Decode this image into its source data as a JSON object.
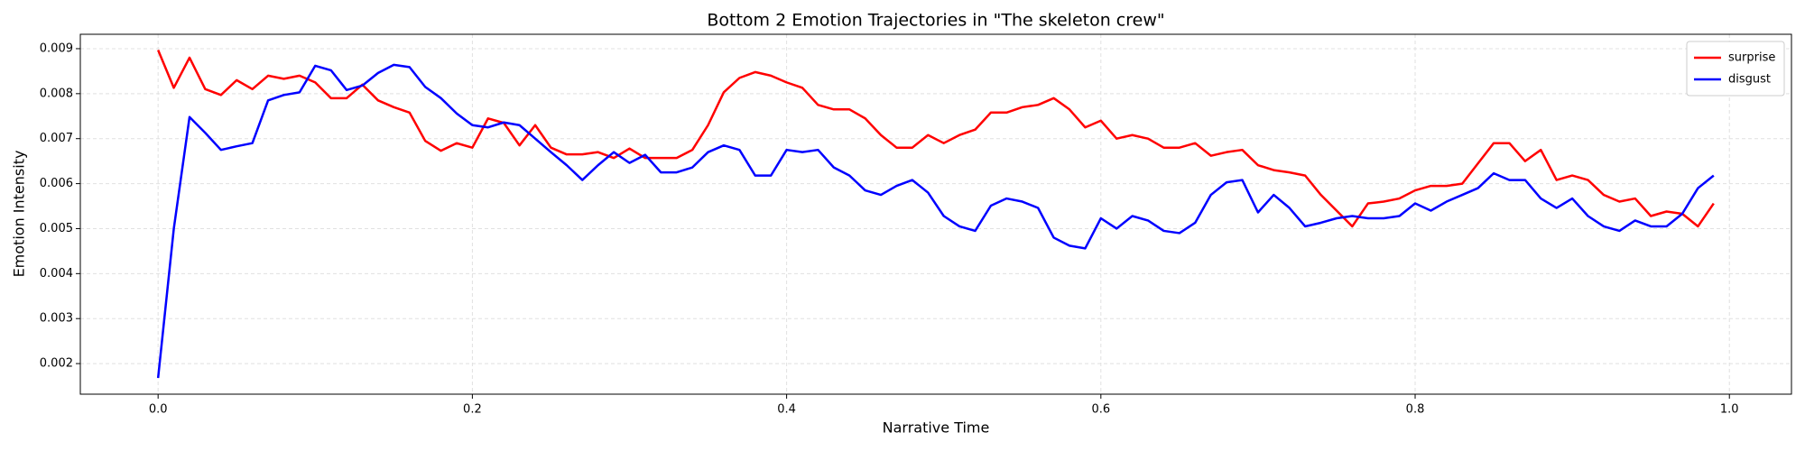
{
  "chart_data": {
    "type": "line",
    "title": "Bottom 2 Emotion Trajectories in \"The skeleton crew\"",
    "xlabel": "Narrative Time",
    "ylabel": "Emotion Intensity",
    "x": [
      0,
      0.01,
      0.02,
      0.03,
      0.04,
      0.05,
      0.06,
      0.07,
      0.08,
      0.09,
      0.1,
      0.11,
      0.12,
      0.13,
      0.14,
      0.15,
      0.16,
      0.17,
      0.18,
      0.19,
      0.2,
      0.21,
      0.22,
      0.23,
      0.24,
      0.25,
      0.26,
      0.27,
      0.28,
      0.29,
      0.3,
      0.31,
      0.32,
      0.33,
      0.34,
      0.35,
      0.36,
      0.37,
      0.38,
      0.39,
      0.4,
      0.41,
      0.42,
      0.43,
      0.44,
      0.45,
      0.46,
      0.47,
      0.48,
      0.49,
      0.5,
      0.51,
      0.52,
      0.53,
      0.54,
      0.55,
      0.56,
      0.57,
      0.58,
      0.59,
      0.6,
      0.61,
      0.62,
      0.63,
      0.64,
      0.65,
      0.66,
      0.67,
      0.68,
      0.69,
      0.7,
      0.71,
      0.72,
      0.73,
      0.74,
      0.75,
      0.76,
      0.77,
      0.78,
      0.79,
      0.8,
      0.81,
      0.82,
      0.83,
      0.84,
      0.85,
      0.86,
      0.87,
      0.88,
      0.89,
      0.9,
      0.91,
      0.92,
      0.93,
      0.94,
      0.95,
      0.96,
      0.97,
      0.98,
      0.99
    ],
    "series": [
      {
        "name": "surprise",
        "color": "#ff0000",
        "values": [
          0.00897,
          0.00813,
          0.0088,
          0.0081,
          0.00797,
          0.0083,
          0.0081,
          0.0084,
          0.00833,
          0.0084,
          0.00825,
          0.0079,
          0.0079,
          0.0082,
          0.00785,
          0.0077,
          0.00758,
          0.00695,
          0.00673,
          0.0069,
          0.0068,
          0.00745,
          0.00735,
          0.00685,
          0.0073,
          0.0068,
          0.00665,
          0.00665,
          0.0067,
          0.00657,
          0.00678,
          0.00657,
          0.00657,
          0.00657,
          0.00675,
          0.0073,
          0.00803,
          0.00835,
          0.00848,
          0.0084,
          0.00825,
          0.00813,
          0.00775,
          0.00765,
          0.00765,
          0.00745,
          0.00708,
          0.0068,
          0.0068,
          0.00708,
          0.0069,
          0.00708,
          0.0072,
          0.00758,
          0.00758,
          0.0077,
          0.00775,
          0.0079,
          0.00765,
          0.00725,
          0.0074,
          0.007,
          0.00708,
          0.007,
          0.0068,
          0.0068,
          0.0069,
          0.00662,
          0.0067,
          0.00675,
          0.00641,
          0.0063,
          0.00625,
          0.00618,
          0.00575,
          0.0054,
          0.00505,
          0.00556,
          0.0056,
          0.00567,
          0.00585,
          0.00595,
          0.00595,
          0.006,
          0.00645,
          0.0069,
          0.0069,
          0.0065,
          0.00675,
          0.00608,
          0.00618,
          0.00608,
          0.00575,
          0.0056,
          0.00567,
          0.00528,
          0.00538,
          0.00533,
          0.00505,
          0.00556
        ]
      },
      {
        "name": "disgust",
        "color": "#0000ff",
        "values": [
          0.00168,
          0.005,
          0.00748,
          0.00713,
          0.00675,
          0.00683,
          0.0069,
          0.00785,
          0.00797,
          0.00803,
          0.00862,
          0.00852,
          0.00808,
          0.00818,
          0.00846,
          0.00864,
          0.00859,
          0.00815,
          0.0079,
          0.00756,
          0.0073,
          0.00725,
          0.00736,
          0.0073,
          0.007,
          0.0067,
          0.00641,
          0.00608,
          0.00641,
          0.0067,
          0.00646,
          0.00664,
          0.00625,
          0.00625,
          0.00636,
          0.0067,
          0.00685,
          0.00675,
          0.00618,
          0.00618,
          0.00675,
          0.0067,
          0.00675,
          0.00636,
          0.00618,
          0.00585,
          0.00575,
          0.00595,
          0.00608,
          0.0058,
          0.00528,
          0.00505,
          0.00495,
          0.00551,
          0.00567,
          0.0056,
          0.00546,
          0.0048,
          0.00462,
          0.00456,
          0.00523,
          0.005,
          0.00528,
          0.00518,
          0.00495,
          0.0049,
          0.00513,
          0.00575,
          0.00603,
          0.00608,
          0.00536,
          0.00575,
          0.00546,
          0.00505,
          0.00513,
          0.00523,
          0.00528,
          0.00523,
          0.00523,
          0.00528,
          0.00556,
          0.0054,
          0.0056,
          0.00575,
          0.0059,
          0.00623,
          0.00608,
          0.00608,
          0.00567,
          0.00546,
          0.00567,
          0.00528,
          0.00505,
          0.00495,
          0.00518,
          0.00505,
          0.00505,
          0.00533,
          0.0059,
          0.00618
        ]
      }
    ],
    "xlim": [
      -0.0495,
      1.0395
    ],
    "xticks": [
      {
        "value": 0,
        "label": "0.0"
      },
      0.2,
      0.4,
      0.6,
      0.8,
      {
        "value": 1,
        "label": "1.0"
      }
    ],
    "ylim": [
      0.00132,
      0.00932
    ],
    "yticks": [
      0.002,
      0.003,
      0.004,
      0.005,
      0.006,
      0.007,
      0.008,
      0.009
    ],
    "grid": true,
    "legend": "upper right"
  }
}
